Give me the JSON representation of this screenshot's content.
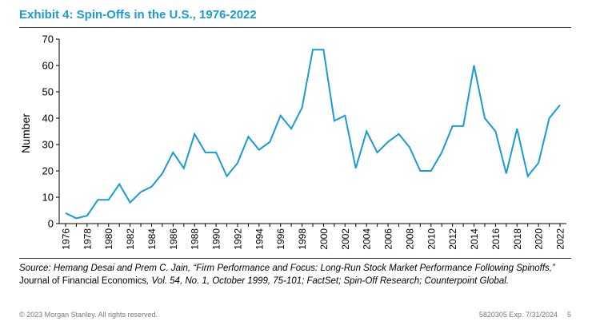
{
  "header": {
    "title": "Exhibit 4: Spin-Offs in the U.S., 1976-2022"
  },
  "chart_data": {
    "type": "line",
    "title": "Exhibit 4: Spin-Offs in the U.S., 1976-2022",
    "xlabel": "",
    "ylabel": "Number",
    "ylim": [
      0,
      70
    ],
    "yticks": [
      0,
      10,
      20,
      30,
      40,
      50,
      60,
      70
    ],
    "xticks": [
      "1976",
      "1978",
      "1980",
      "1982",
      "1984",
      "1986",
      "1988",
      "1990",
      "1992",
      "1994",
      "1996",
      "1998",
      "2000",
      "2002",
      "2004",
      "2006",
      "2008",
      "2010",
      "2012",
      "2014",
      "2016",
      "2018",
      "2020",
      "2022"
    ],
    "grid": false,
    "line_color": "#1a9bd7",
    "series": [
      {
        "name": "Spin-Offs",
        "x": [
          1976,
          1977,
          1978,
          1979,
          1980,
          1981,
          1982,
          1983,
          1984,
          1985,
          1986,
          1987,
          1988,
          1989,
          1990,
          1991,
          1992,
          1993,
          1994,
          1995,
          1996,
          1997,
          1998,
          1999,
          2000,
          2001,
          2002,
          2003,
          2004,
          2005,
          2006,
          2007,
          2008,
          2009,
          2010,
          2011,
          2012,
          2013,
          2014,
          2015,
          2016,
          2017,
          2018,
          2019,
          2020,
          2021,
          2022
        ],
        "values": [
          4,
          2,
          3,
          9,
          9,
          15,
          8,
          12,
          14,
          19,
          27,
          21,
          34,
          27,
          27,
          18,
          23,
          33,
          28,
          31,
          41,
          36,
          44,
          66,
          66,
          39,
          41,
          21,
          35,
          27,
          31,
          34,
          29,
          20,
          20,
          27,
          37,
          37,
          60,
          40,
          35,
          19,
          36,
          18,
          23,
          40,
          45
        ]
      }
    ]
  },
  "source": {
    "prefix": "Source: ",
    "authors": "Hemang Desai and Prem C. Jain, “Firm Performance and Focus: Long-Run Stock Market Performance Following Spinoffs,”",
    "journal": " Journal of Financial Economics",
    "details": ", Vol. 54, No. 1, October 1999, 75-101; FactSet; Spin-Off Research; Counterpoint Global."
  },
  "footer": {
    "copyright": "© 2023 Morgan Stanley. All rights reserved.",
    "code": "5820305 Exp. 7/31/2024",
    "page": "5"
  }
}
